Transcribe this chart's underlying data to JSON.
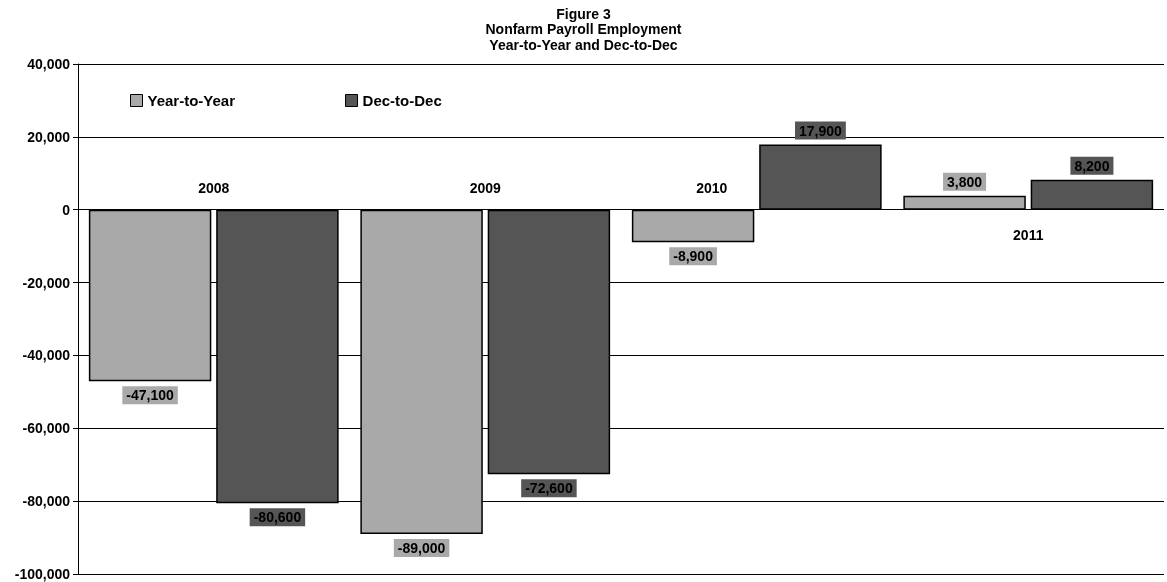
{
  "chart_data": {
    "type": "bar",
    "title": "Figure 3",
    "subtitle": "Nonfarm Payroll Employment\nYear-to-Year and Dec-to-Dec",
    "categories": [
      "2008",
      "2009",
      "2010",
      "2011"
    ],
    "series": [
      {
        "name": "Year-to-Year",
        "color": "#a9a9a9",
        "values": [
          -47100,
          -89000,
          -8900,
          3800
        ],
        "value_labels": [
          "-47,100",
          "-89,000",
          "-8,900",
          "3,800"
        ]
      },
      {
        "name": "Dec-to-Dec",
        "color": "#555555",
        "values": [
          -80600,
          -72600,
          17900,
          8200
        ],
        "value_labels": [
          "-80,600",
          "-72,600",
          "17,900",
          "8,200"
        ]
      }
    ],
    "ylim": [
      -100000,
      40000
    ],
    "yticks": [
      {
        "value": -100000,
        "label": "-100,000"
      },
      {
        "value": -80000,
        "label": "-80,000"
      },
      {
        "value": -60000,
        "label": "-60,000"
      },
      {
        "value": -40000,
        "label": "-40,000"
      },
      {
        "value": -20000,
        "label": "-20,000"
      },
      0,
      {
        "value": 20000,
        "label": "20,000"
      },
      {
        "value": 40000,
        "label": "40,000"
      }
    ],
    "grid": "y",
    "legend": "top left"
  }
}
